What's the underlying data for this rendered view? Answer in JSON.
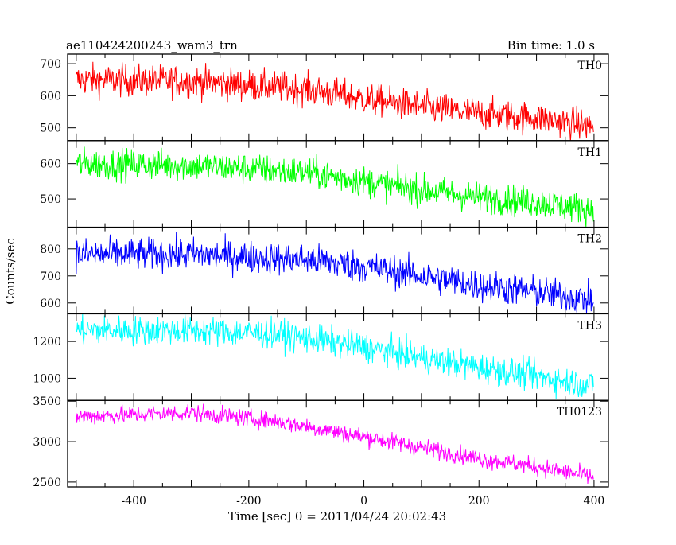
{
  "header": {
    "title": "ae110424200243_wam3_trn",
    "bin_time": "Bin time: 1.0 s"
  },
  "chart_data": {
    "type": "line",
    "title": "ae110424200243_wam3_trn",
    "subtitle": "Bin time: 1.0 s",
    "xlabel": "Time [sec] 0 = 2011/04/24 20:02:43",
    "ylabel": "Counts/sec",
    "xlim": [
      -515,
      425
    ],
    "x_ticks": [
      -400,
      -200,
      0,
      200,
      400
    ],
    "x_start": -500,
    "x_end": 399,
    "x_step": 1,
    "grid": false,
    "panels": [
      {
        "name": "TH0",
        "color": "#ff0000",
        "ylim": [
          460,
          730
        ],
        "y_ticks": [
          500,
          600,
          700
        ],
        "trend_x": [
          -500,
          -300,
          -100,
          0,
          100,
          200,
          300,
          399
        ],
        "trend_y": [
          650,
          645,
          620,
          590,
          565,
          545,
          530,
          505
        ],
        "noise_sd": 25
      },
      {
        "name": "TH1",
        "color": "#00ff00",
        "ylim": [
          420,
          665
        ],
        "y_ticks": [
          500,
          600
        ],
        "trend_x": [
          -500,
          -300,
          -100,
          0,
          100,
          200,
          300,
          399
        ],
        "trend_y": [
          600,
          595,
          575,
          550,
          525,
          505,
          490,
          470
        ],
        "noise_sd": 22
      },
      {
        "name": "TH2",
        "color": "#0000ff",
        "ylim": [
          560,
          880
        ],
        "y_ticks": [
          600,
          700,
          800
        ],
        "trend_x": [
          -500,
          -300,
          -100,
          0,
          100,
          200,
          300,
          399
        ],
        "trend_y": [
          780,
          780,
          760,
          735,
          700,
          665,
          640,
          610
        ],
        "noise_sd": 30
      },
      {
        "name": "TH3",
        "color": "#00ffff",
        "ylim": [
          880,
          1350
        ],
        "y_ticks": [
          1000,
          1200
        ],
        "trend_x": [
          -500,
          -300,
          -150,
          0,
          100,
          200,
          300,
          399
        ],
        "trend_y": [
          1260,
          1260,
          1240,
          1170,
          1110,
          1060,
          1010,
          960
        ],
        "noise_sd": 40
      },
      {
        "name": "TH0123",
        "color": "#ff00ff",
        "ylim": [
          2440,
          3510
        ],
        "y_ticks": [
          2500,
          3000,
          3500
        ],
        "trend_x": [
          -500,
          -300,
          -150,
          0,
          100,
          200,
          300,
          399
        ],
        "trend_y": [
          3310,
          3360,
          3250,
          3060,
          2930,
          2790,
          2690,
          2560
        ],
        "noise_sd": 55
      }
    ]
  }
}
